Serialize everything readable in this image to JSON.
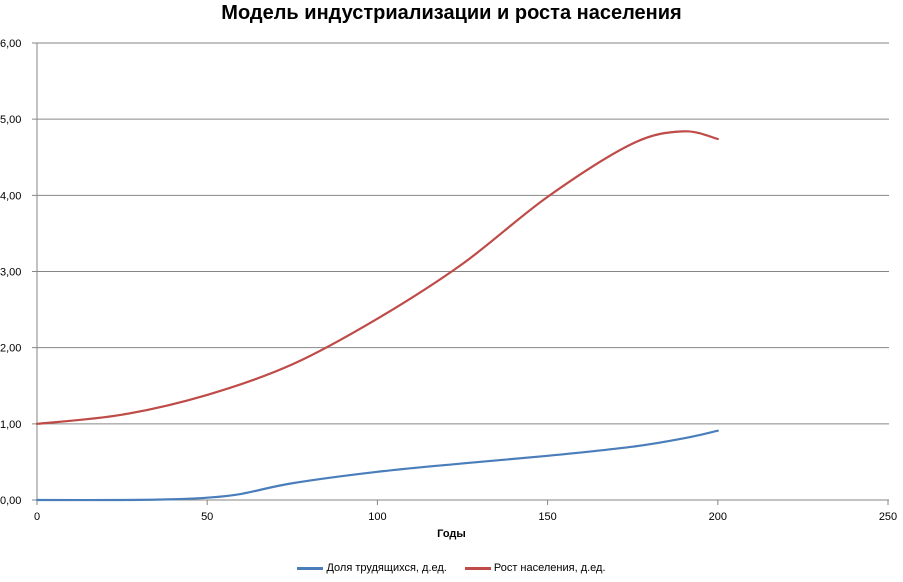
{
  "chart_data": {
    "type": "line",
    "title": "Модель индустриализации и роста населения",
    "xlabel": "Годы",
    "ylabel": "",
    "xlim": [
      0,
      250
    ],
    "ylim": [
      0,
      6
    ],
    "x_ticks": [
      "0",
      "50",
      "100",
      "150",
      "200",
      "250"
    ],
    "y_ticks": [
      "0,00",
      "1,00",
      "2,00",
      "3,00",
      "4,00",
      "5,00",
      "6,00"
    ],
    "grid": "horizontal",
    "legend_position": "bottom",
    "series": [
      {
        "name": "Доля трудящихся, д.ед.",
        "color": "#4a7ebb",
        "x": [
          0,
          25,
          40,
          50,
          60,
          75,
          100,
          125,
          150,
          175,
          190,
          200
        ],
        "values": [
          0.0,
          0.0,
          0.01,
          0.03,
          0.08,
          0.22,
          0.37,
          0.48,
          0.58,
          0.7,
          0.81,
          0.91
        ]
      },
      {
        "name": "Рост населения, д.ед.",
        "color": "#be4b48",
        "x": [
          0,
          25,
          50,
          75,
          100,
          125,
          150,
          175,
          190,
          200
        ],
        "values": [
          1.0,
          1.12,
          1.38,
          1.78,
          2.38,
          3.1,
          3.98,
          4.68,
          4.84,
          4.74
        ]
      }
    ]
  },
  "legend": {
    "item0": "Доля трудящихся, д.ед.",
    "item1": "Рост населения, д.ед."
  }
}
